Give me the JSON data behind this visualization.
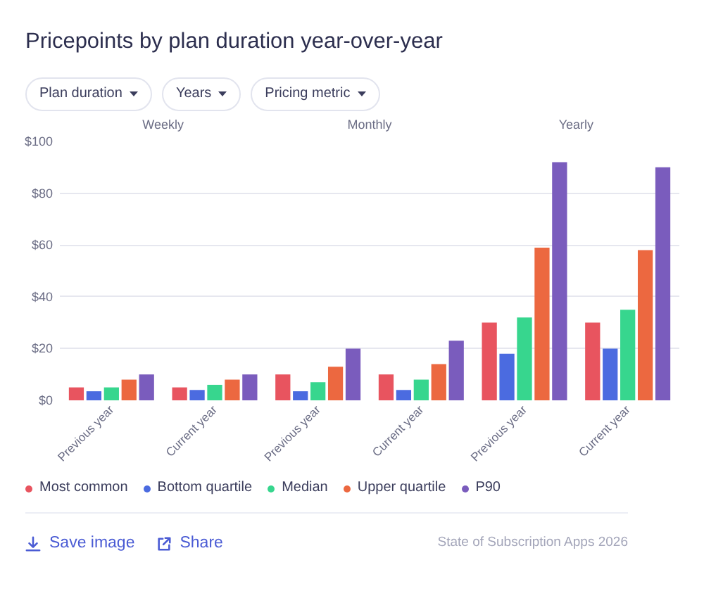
{
  "chart_data": {
    "type": "bar",
    "title": "Pricepoints by plan duration year-over-year",
    "categories": [
      "Previous year",
      "Current year",
      "Previous year",
      "Current year",
      "Previous year",
      "Current year"
    ],
    "series": [
      {
        "name": "Most common",
        "color": "#e8545f",
        "values": [
          5,
          5,
          10,
          10,
          30,
          30
        ]
      },
      {
        "name": "Bottom quartile",
        "color": "#4b6be0",
        "values": [
          3.5,
          4,
          3.5,
          4,
          18,
          20
        ]
      },
      {
        "name": "Median",
        "color": "#37d68e",
        "values": [
          5,
          6,
          7,
          8,
          32,
          35
        ]
      },
      {
        "name": "Upper quartile",
        "color": "#ec6840",
        "values": [
          8,
          8,
          13,
          14,
          59,
          58
        ]
      },
      {
        "name": "P90",
        "color": "#7a5cbd",
        "values": [
          10,
          10,
          20,
          23,
          92,
          90
        ]
      }
    ],
    "ylim": [
      0,
      100
    ],
    "yticks": [
      {
        "value": 0,
        "label": "$0"
      },
      {
        "value": 20,
        "label": "$20"
      },
      {
        "value": 40,
        "label": "$40"
      },
      {
        "value": 60,
        "label": "$60"
      },
      {
        "value": 80,
        "label": "$80"
      },
      {
        "value": 100,
        "label": "$100"
      }
    ],
    "grid": "y",
    "legend": "bottom",
    "annotations": [
      "Plan duration",
      "Years",
      "Pricing metric",
      "Weekly",
      "Monthly",
      "Yearly",
      "Save image",
      "Share",
      "State of Subscription Apps 2026"
    ]
  }
}
